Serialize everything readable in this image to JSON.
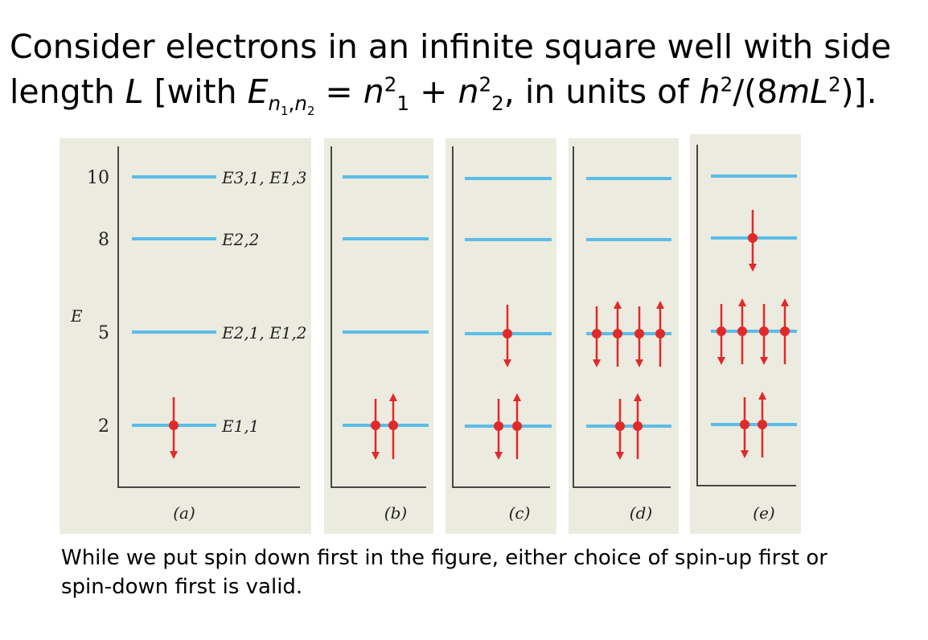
{
  "title": {
    "pre": "Consider electrons in an infinite square well with side length ",
    "L": "L",
    "with": " [with ",
    "E": "E",
    "E_sub": "n",
    "E_subsub_1": "1",
    "comma": ",",
    "E_subsub_2": "2",
    "eq": " = ",
    "n1": "n",
    "n1_sup": "2",
    "n1_sub": "1",
    "plus": " + ",
    "n2": "n",
    "n2_sup": "2",
    "n2_sub": "2",
    "units": ", in units of ",
    "h": "h",
    "h_sup": "2",
    "slash": "/(8",
    "mL": "mL",
    "L_sup": "2",
    "close": ")]."
  },
  "diagram": {
    "axis_label": "E",
    "tick_labels": [
      "10",
      "8",
      "5",
      "2"
    ],
    "level_labels": [
      "E3,1, E1,3",
      "E2,2",
      "E2,1, E1,2",
      "E1,1"
    ],
    "panel_labels": [
      "(a)",
      "(b)",
      "(c)",
      "(d)",
      "(e)"
    ],
    "energy_levels": [
      2,
      5,
      8,
      10
    ],
    "colors": {
      "panel_bg": "#ecebe0",
      "level": "#5bbde8",
      "electron": "#e02a2a"
    },
    "occupancy": [
      {
        "panel": "a",
        "electrons": [
          {
            "level": 2,
            "spin": "down"
          }
        ]
      },
      {
        "panel": "b",
        "electrons": [
          {
            "level": 2,
            "spin": "down"
          },
          {
            "level": 2,
            "spin": "up"
          }
        ]
      },
      {
        "panel": "c",
        "electrons": [
          {
            "level": 2,
            "spin": "down"
          },
          {
            "level": 2,
            "spin": "up"
          },
          {
            "level": 5,
            "spin": "down"
          }
        ]
      },
      {
        "panel": "d",
        "electrons": [
          {
            "level": 2,
            "spin": "down"
          },
          {
            "level": 2,
            "spin": "up"
          },
          {
            "level": 5,
            "spin": "down"
          },
          {
            "level": 5,
            "spin": "up"
          },
          {
            "level": 5,
            "spin": "down"
          },
          {
            "level": 5,
            "spin": "up"
          }
        ]
      },
      {
        "panel": "e",
        "electrons": [
          {
            "level": 2,
            "spin": "down"
          },
          {
            "level": 2,
            "spin": "up"
          },
          {
            "level": 5,
            "spin": "down"
          },
          {
            "level": 5,
            "spin": "up"
          },
          {
            "level": 5,
            "spin": "down"
          },
          {
            "level": 5,
            "spin": "up"
          },
          {
            "level": 8,
            "spin": "down"
          }
        ]
      }
    ]
  },
  "caption": "While we put spin down first in the figure, either choice of spin-up first or spin-down first is valid."
}
